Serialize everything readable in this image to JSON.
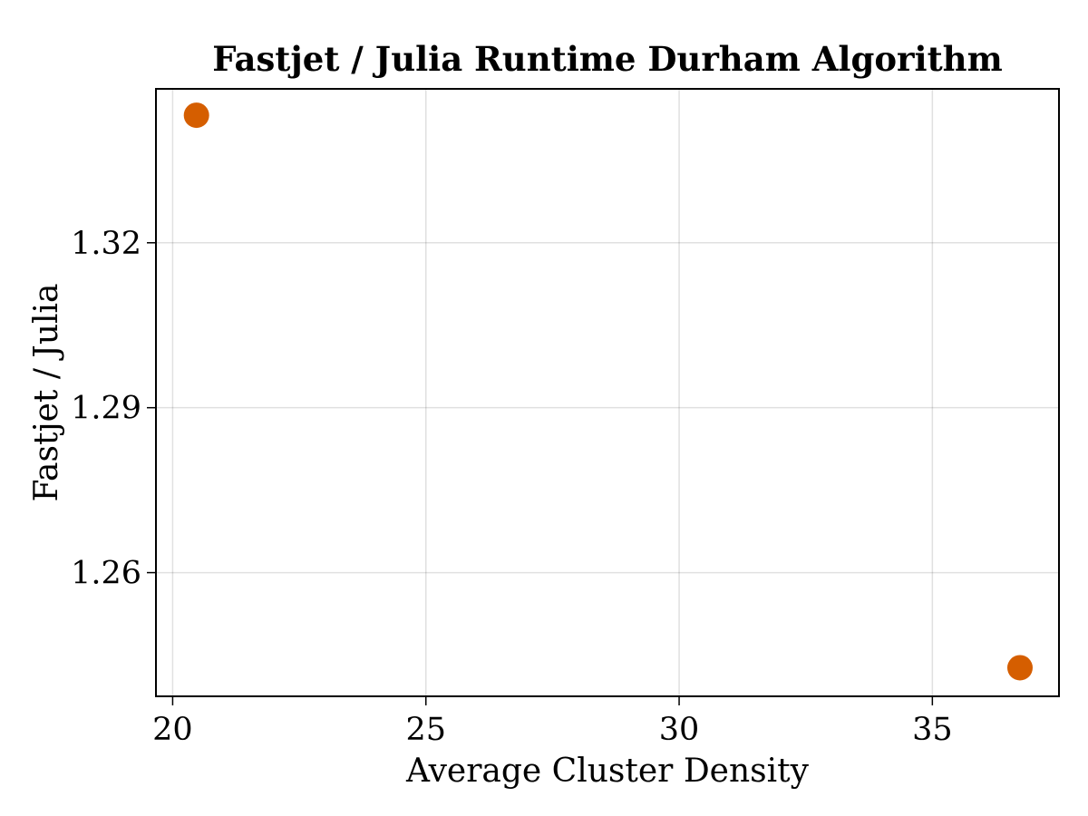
{
  "chart_data": {
    "type": "scatter",
    "title": "Fastjet / Julia Runtime Durham Algorithm",
    "xlabel": "Average Cluster Density",
    "ylabel": "Fastjet / Julia",
    "xlim": [
      19.67,
      37.5
    ],
    "ylim": [
      1.2375,
      1.348
    ],
    "x_ticks": [
      20,
      25,
      30,
      35
    ],
    "x_tick_labels": [
      "20",
      "25",
      "30",
      "35"
    ],
    "y_ticks": [
      1.26,
      1.29,
      1.32
    ],
    "y_tick_labels": [
      "1.26",
      "1.29",
      "1.32"
    ],
    "grid": true,
    "series": [
      {
        "color": "#d55e00",
        "points": [
          {
            "x": 20.47,
            "y": 1.3432
          },
          {
            "x": 36.73,
            "y": 1.2427
          }
        ]
      }
    ]
  }
}
